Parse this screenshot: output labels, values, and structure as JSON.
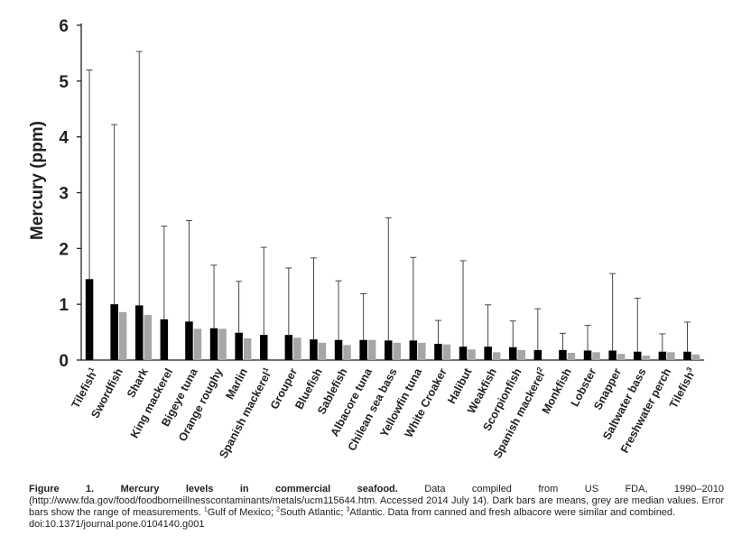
{
  "chart_data": {
    "type": "bar",
    "ylabel": "Mercury (ppm)",
    "ylim": [
      0,
      6
    ],
    "yticks": [
      0,
      1,
      2,
      3,
      4,
      5,
      6
    ],
    "grid": false,
    "categories": [
      "Tilefish",
      "Swordfish",
      "Shark",
      "King mackerel",
      "Bigeye tuna",
      "Orange roughy",
      "Marlin",
      "Spanish mackerel",
      "Grouper",
      "Bluefish",
      "Sablefish",
      "Albacore tuna",
      "Chilean sea bass",
      "Yellowfin tuna",
      "White Croaker",
      "Halibut",
      "Weakfish",
      "Scorpionfish",
      "Spanish mackerel",
      "Monkfish",
      "Lobster",
      "Snapper",
      "Saltwater bass",
      "Freshwater perch",
      "Tilefish"
    ],
    "category_superscripts": [
      "1",
      "",
      "",
      "",
      "",
      "",
      "",
      "1",
      "",
      "",
      "",
      "",
      "",
      "",
      "",
      "",
      "",
      "",
      "2",
      "",
      "",
      "",
      "",
      "",
      "3"
    ],
    "series": [
      {
        "color": "#000000",
        "values": [
          1.45,
          1.0,
          0.98,
          0.73,
          0.69,
          0.57,
          0.49,
          0.45,
          0.45,
          0.37,
          0.36,
          0.36,
          0.35,
          0.35,
          0.29,
          0.24,
          0.24,
          0.23,
          0.18,
          0.18,
          0.17,
          0.17,
          0.15,
          0.15,
          0.15
        ]
      },
      {
        "color": "#a6a6a6",
        "values": [
          null,
          0.86,
          0.81,
          null,
          0.56,
          0.56,
          0.39,
          null,
          0.4,
          0.31,
          0.27,
          0.36,
          0.31,
          0.31,
          0.28,
          0.19,
          0.14,
          0.18,
          null,
          0.13,
          0.14,
          0.11,
          0.08,
          0.14,
          0.1
        ]
      }
    ],
    "error_max": [
      5.2,
      4.22,
      5.53,
      2.4,
      2.5,
      1.7,
      1.41,
      2.02,
      1.65,
      1.83,
      1.42,
      1.19,
      2.55,
      1.84,
      0.71,
      1.78,
      0.99,
      0.7,
      0.92,
      0.48,
      0.62,
      1.55,
      1.11,
      0.47,
      0.68
    ]
  },
  "caption": {
    "figure_label": "Figure 1. Mercury levels in commercial seafood.",
    "text_1": "Data compiled from US FDA, 1990–2010 (http://www.fda.gov/food/foodborneillnesscontaminants/metals/ucm115644.htm. Accessed 2014 July 14). Dark bars are means, grey are median values. Error bars show the range of measurements.",
    "note_1_mark": "1",
    "note_1": "Gulf of Mexico;",
    "note_2_mark": "2",
    "note_2": "South Atlantic;",
    "note_3_mark": "3",
    "note_3": "Atlantic. Data from canned and fresh albacore were similar and combined.",
    "doi": "doi:10.1371/journal.pone.0104140.g001"
  }
}
